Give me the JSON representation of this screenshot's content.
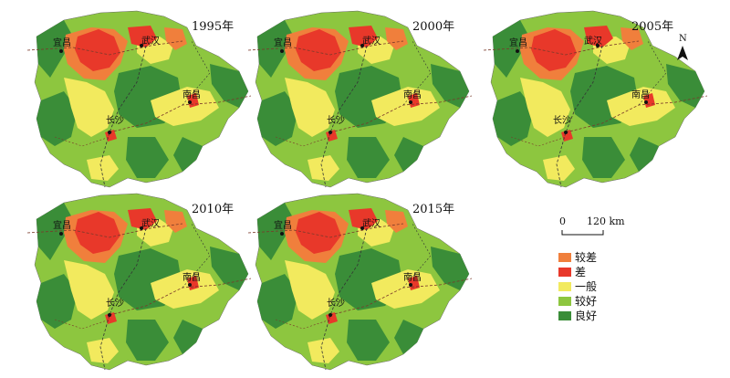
{
  "panels": [
    {
      "year": "1995年"
    },
    {
      "year": "2000年"
    },
    {
      "year": "2005年"
    },
    {
      "year": "2010年"
    },
    {
      "year": "2015年"
    }
  ],
  "cities": {
    "yichang": "宜昌",
    "wuhan": "武汉",
    "nanchang": "南昌",
    "changsha": "长沙"
  },
  "legend": [
    {
      "label": "较差",
      "color": "#f07f3c"
    },
    {
      "label": "差",
      "color": "#e8382a"
    },
    {
      "label": "一般",
      "color": "#f2ea5e"
    },
    {
      "label": "较好",
      "color": "#8dc63f"
    },
    {
      "label": "良好",
      "color": "#3a8d38"
    }
  ],
  "scale": {
    "zero": "0",
    "end": "120 km"
  },
  "north": "N"
}
